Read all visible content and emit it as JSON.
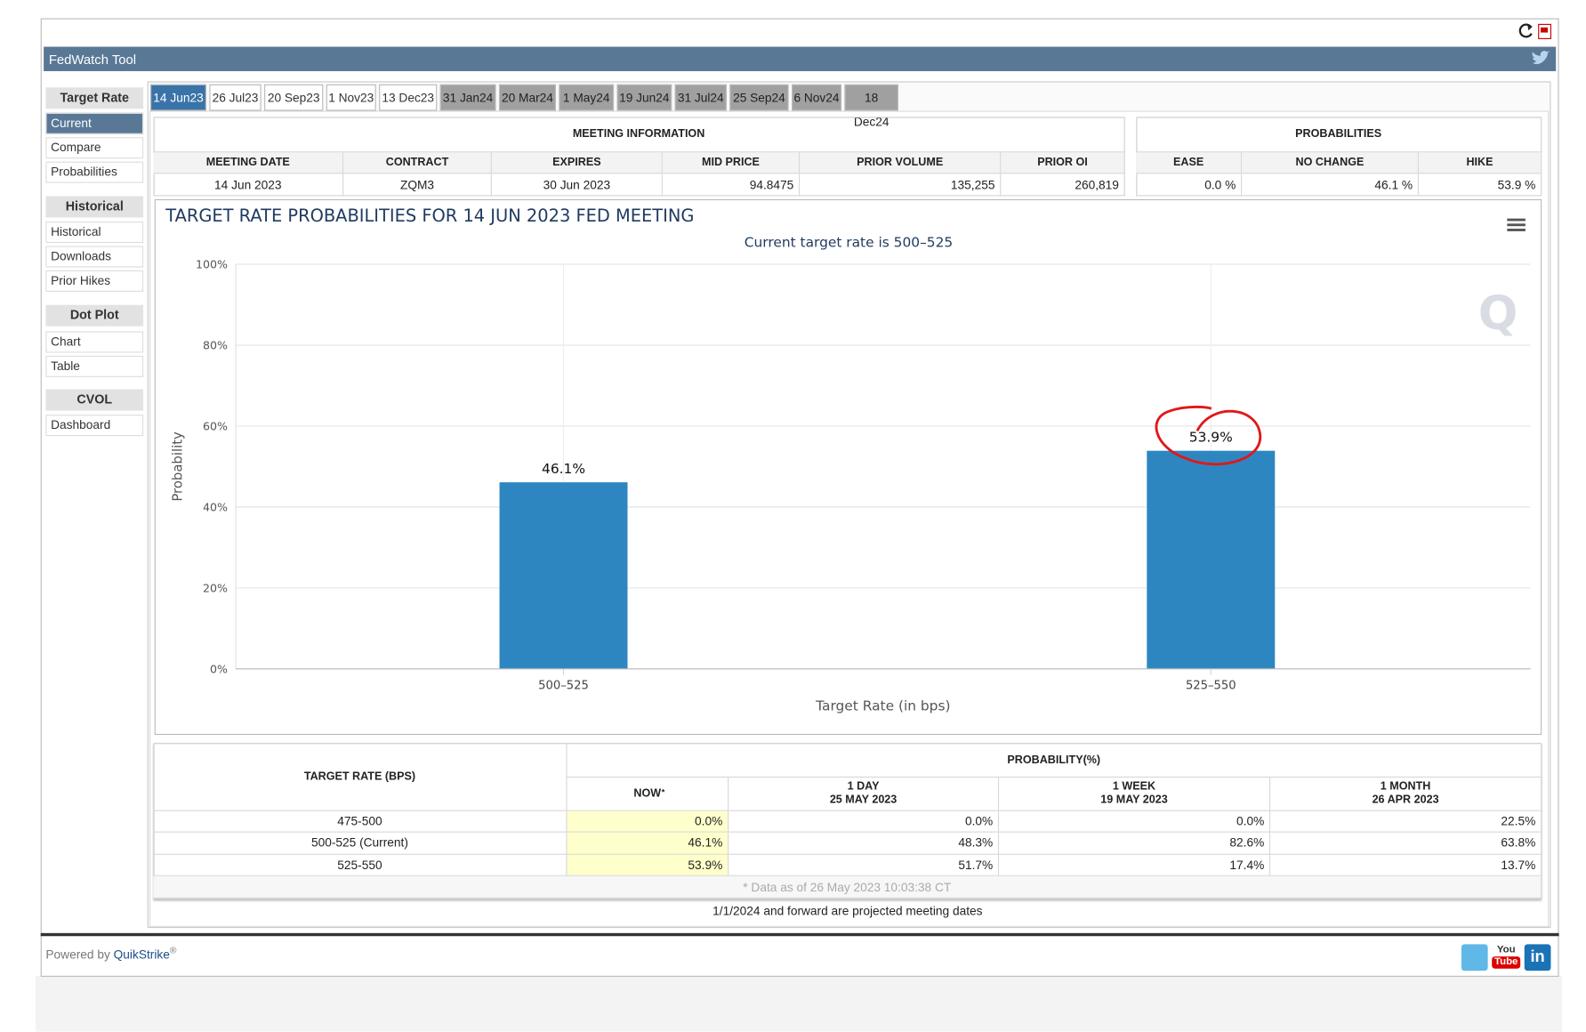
{
  "header": {
    "title": "FedWatch Tool"
  },
  "sidebar": [
    {
      "title": "Target Rate",
      "items": [
        "Current",
        "Compare",
        "Probabilities"
      ]
    },
    {
      "title": "Historical",
      "items": [
        "Historical",
        "Downloads",
        "Prior Hikes"
      ]
    },
    {
      "title": "Dot Plot",
      "items": [
        "Chart",
        "Table"
      ]
    },
    {
      "title": "CVOL",
      "items": [
        "Dashboard"
      ]
    }
  ],
  "tabs": [
    "14 Jun23",
    "26 Jul23",
    "20 Sep23",
    "1 Nov23",
    "13 Dec23",
    "31 Jan24",
    "20 Mar24",
    "1 May24",
    "19 Jun24",
    "31 Jul24",
    "25 Sep24",
    "6 Nov24",
    "18 Dec24"
  ],
  "meeting_info": {
    "title": "MEETING INFORMATION",
    "columns": [
      "MEETING DATE",
      "CONTRACT",
      "EXPIRES",
      "MID PRICE",
      "PRIOR VOLUME",
      "PRIOR OI"
    ],
    "row": [
      "14 Jun 2023",
      "ZQM3",
      "30 Jun 2023",
      "94.8475",
      "135,255",
      "260,819"
    ]
  },
  "probabilities": {
    "title": "PROBABILITIES",
    "columns": [
      "EASE",
      "NO CHANGE",
      "HIKE"
    ],
    "row": [
      "0.0 %",
      "46.1 %",
      "53.9 %"
    ]
  },
  "chart_data": {
    "type": "bar",
    "title": "TARGET RATE PROBABILITIES FOR 14 JUN 2023 FED MEETING",
    "subtitle": "Current target rate is 500–525",
    "x_label": "Target Rate (in bps)",
    "y_label": "Probability",
    "watermark": "Q",
    "categories": [
      "500–525",
      "525–550"
    ],
    "values": [
      46.1,
      53.9
    ],
    "value_labels": [
      "46.1%",
      "53.9%"
    ],
    "color": "#2e86c1",
    "ylim": [
      0,
      100
    ],
    "yticks": [
      {
        "value": 0,
        "label": "0%"
      },
      {
        "value": 20,
        "label": "20%"
      },
      {
        "value": 40,
        "label": "40%"
      },
      {
        "value": 60,
        "label": "60%"
      },
      {
        "value": 80,
        "label": "80%"
      },
      {
        "value": 100,
        "label": "100%"
      }
    ],
    "grid": true
  },
  "history_table": {
    "row_header": "TARGET RATE (BPS)",
    "group_header": "PROBABILITY(%)",
    "columns": [
      {
        "label": "NOW",
        "note": "*"
      },
      {
        "label": "1 DAY",
        "date": "25 MAY 2023"
      },
      {
        "label": "1 WEEK",
        "date": "19 MAY 2023"
      },
      {
        "label": "1 MONTH",
        "date": "26 APR 2023"
      }
    ],
    "rows": [
      [
        "475-500",
        "0.0%",
        "0.0%",
        "0.0%",
        "22.5%"
      ],
      [
        "500-525 (Current)",
        "46.1%",
        "48.3%",
        "82.6%",
        "63.8%"
      ],
      [
        "525-550",
        "53.9%",
        "51.7%",
        "17.4%",
        "13.7%"
      ]
    ],
    "footnote": "* Data as of 26 May 2023 10:03:38 CT"
  },
  "projected_note": "1/1/2024 and forward are projected meeting dates",
  "footer": {
    "powered_by": "Powered by",
    "brand": "QuikStrike",
    "mark": "®",
    "youtube": [
      "You",
      "Tube"
    ],
    "linkedin": "in"
  }
}
